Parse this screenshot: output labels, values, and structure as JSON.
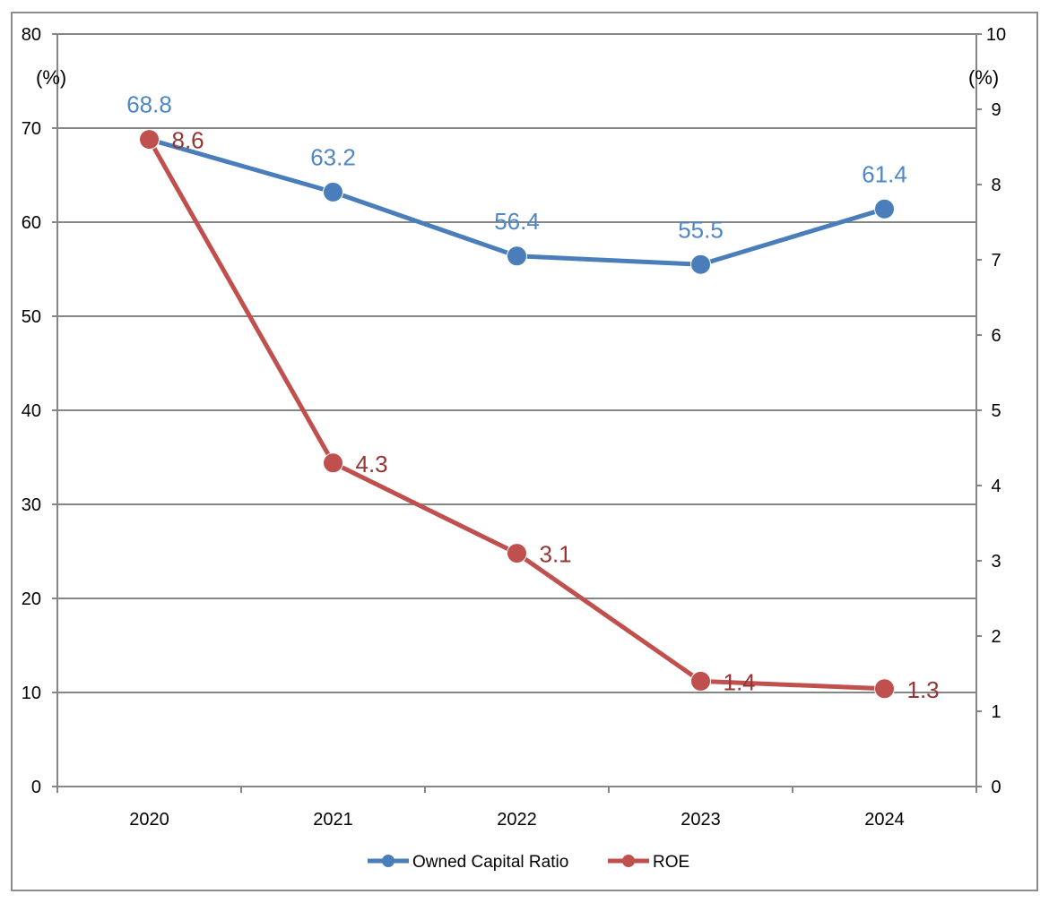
{
  "chart_data": {
    "type": "line",
    "categories": [
      "2020",
      "2021",
      "2022",
      "2023",
      "2024"
    ],
    "series": [
      {
        "name": "Owned Capital Ratio",
        "axis": "left",
        "color": "#4a7ebb",
        "label_color": "#4f86c6",
        "values": [
          68.8,
          63.2,
          56.4,
          55.5,
          61.4
        ],
        "labels": [
          "68.8",
          "63.2",
          "56.4",
          "55.5",
          "61.4"
        ]
      },
      {
        "name": "ROE",
        "axis": "right",
        "color": "#c0504d",
        "label_color": "#943634",
        "values": [
          8.6,
          4.3,
          3.1,
          1.4,
          1.3
        ],
        "labels": [
          "8.6",
          "4.3",
          "3.1",
          "1.4",
          "1.3"
        ]
      }
    ],
    "y_left": {
      "unit": "(%)",
      "ylim": [
        0,
        80
      ],
      "ticks": [
        "0",
        "10",
        "20",
        "30",
        "40",
        "50",
        "60",
        "70",
        "80"
      ]
    },
    "y_right": {
      "unit": "(%)",
      "ylim": [
        0,
        10
      ],
      "ticks": [
        "0",
        "1",
        "2",
        "3",
        "4",
        "5",
        "6",
        "7",
        "8",
        "9",
        "10"
      ]
    },
    "grid": true,
    "legend_position": "bottom-center"
  }
}
